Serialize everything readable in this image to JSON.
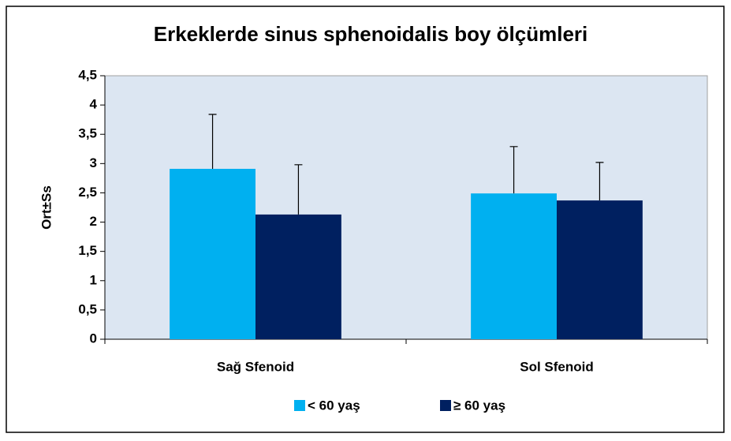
{
  "chart_data": {
    "type": "bar",
    "title": "Erkeklerde sinus sphenoidalis boy ölçümleri",
    "y_label": "Ort±Ss",
    "categories": [
      "Sağ Sfenoid",
      "Sol Sfenoid"
    ],
    "series": [
      {
        "name": "< 60 yaş",
        "color": "#00b0f0",
        "values": [
          2.91,
          2.49
        ],
        "errors": [
          0.93,
          0.8
        ]
      },
      {
        "name": "≥ 60 yaş",
        "color": "#002060",
        "values": [
          2.13,
          2.37
        ],
        "errors": [
          0.85,
          0.65
        ]
      }
    ],
    "ylim": [
      0,
      4.5
    ],
    "yticks": [
      0,
      {
        "value": 0.5,
        "label": "0,5"
      },
      1,
      {
        "value": 1.5,
        "label": "1,5"
      },
      2,
      {
        "value": 2.5,
        "label": "2,5"
      },
      3,
      {
        "value": 3.5,
        "label": "3,5"
      },
      4,
      {
        "value": 4.5,
        "label": "4,5"
      }
    ],
    "legend": "bottom"
  }
}
